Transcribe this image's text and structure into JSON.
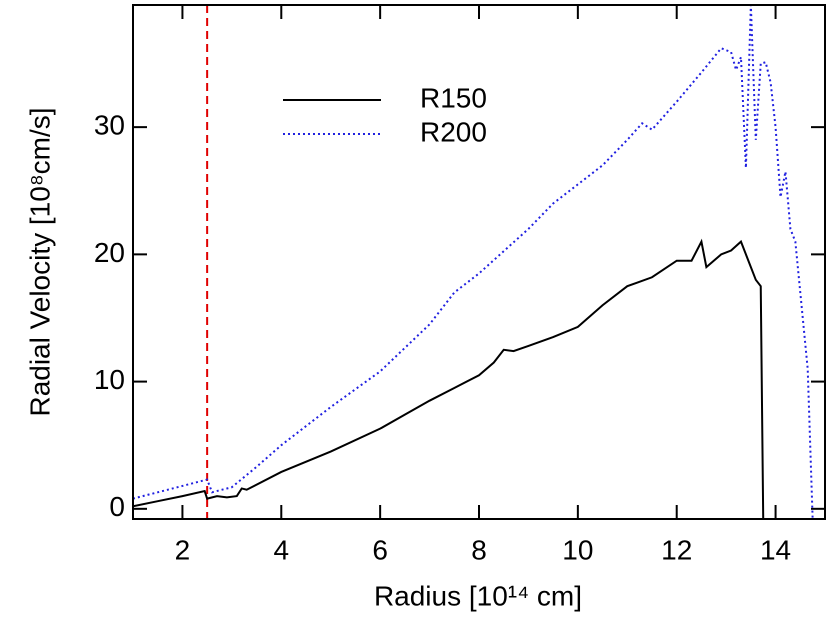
{
  "chart_data": {
    "type": "line",
    "x_label": "Radius [10¹⁴ cm]",
    "y_label": "Radial Velocity [10⁸cm/s]",
    "xlim": [
      1,
      15
    ],
    "xticks": [
      2,
      4,
      6,
      8,
      10,
      12,
      14
    ],
    "ylim": [
      -0.8,
      39.6
    ],
    "yticks": [
      0,
      10,
      20,
      30
    ],
    "vline_x": 2.5,
    "vline_color": "#e00000",
    "legend": "upper left",
    "series": [
      {
        "name": "R150",
        "color": "#000000",
        "style": "solid",
        "x": [
          1,
          1.5,
          2,
          2.45,
          2.5,
          2.7,
          2.9,
          3.1,
          3.2,
          3.3,
          4,
          5,
          6,
          6.5,
          7,
          7.5,
          8,
          8.3,
          8.5,
          8.7,
          9,
          9.5,
          10,
          10.5,
          11,
          11.5,
          12,
          12.3,
          12.5,
          12.6,
          12.9,
          13.1,
          13.3,
          13.45,
          13.6,
          13.7,
          13.75
        ],
        "values": [
          0.2,
          0.6,
          1.0,
          1.4,
          0.8,
          1.0,
          0.9,
          1.0,
          1.6,
          1.5,
          2.9,
          4.5,
          6.3,
          7.4,
          8.5,
          9.5,
          10.5,
          11.5,
          12.5,
          12.4,
          12.8,
          13.5,
          14.3,
          16.0,
          17.5,
          18.2,
          19.5,
          19.5,
          21.0,
          19.0,
          20.0,
          20.3,
          21.0,
          19.5,
          18.0,
          17.5,
          -0.8
        ]
      },
      {
        "name": "R200",
        "color": "#2020e0",
        "style": "dotted",
        "x": [
          1,
          1.5,
          2,
          2.5,
          2.6,
          3,
          3.5,
          4,
          5,
          6,
          7,
          7.5,
          8,
          9,
          9.5,
          10,
          10.5,
          11,
          11.3,
          11.5,
          12,
          12.5,
          12.9,
          13.1,
          13.2,
          13.3,
          13.4,
          13.5,
          13.6,
          13.7,
          13.8,
          13.9,
          14.0,
          14.1,
          14.2,
          14.3,
          14.4,
          14.5,
          14.65,
          14.75
        ],
        "values": [
          0.8,
          1.3,
          1.8,
          2.3,
          1.3,
          1.7,
          3.3,
          5.0,
          8.0,
          10.8,
          14.5,
          17.0,
          18.5,
          22.0,
          24.0,
          25.5,
          27.0,
          29.0,
          30.3,
          29.8,
          32.0,
          34.3,
          36.2,
          35.9,
          34.5,
          35.5,
          26.8,
          39.6,
          29.0,
          35.0,
          35.1,
          33.5,
          30.0,
          24.5,
          26.5,
          22.0,
          21.0,
          17.0,
          11.0,
          -0.8
        ]
      }
    ]
  }
}
